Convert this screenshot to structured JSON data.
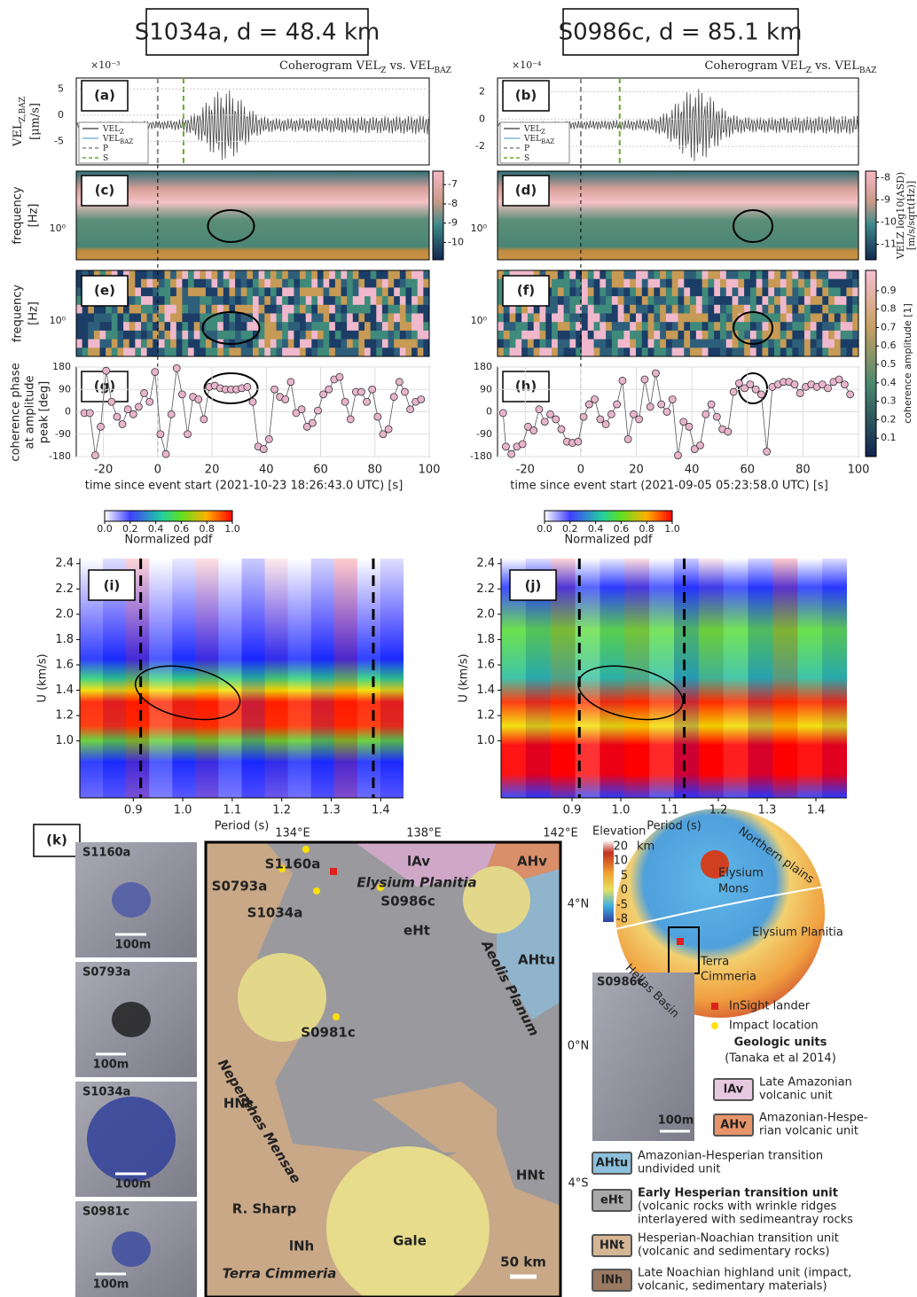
{
  "headers": [
    "S1034a, d = 48.4 km",
    "S0986c, d = 85.1 km"
  ],
  "coherogram_title": [
    {
      "t": "Coherogram VEL"
    },
    {
      "t": "Z",
      "sub": true
    },
    {
      "t": " vs. "
    },
    {
      "t": "VEL"
    },
    {
      "t": "BAZ",
      "sub": true
    }
  ],
  "wave_ylabel": [
    {
      "t": "VEL"
    },
    {
      "t": "Z,BAZ",
      "sub": true
    }
  ],
  "wave_yunit": "[μm/s]",
  "legend": [
    {
      "t": "VEL",
      "sub": "Z",
      "color": "#555555"
    },
    {
      "t": "VEL",
      "sub": "BAZ",
      "color": "#7fb7d6"
    },
    {
      "t": "P",
      "color": "#888888"
    },
    {
      "t": "S",
      "color": "#6aa832"
    }
  ],
  "freq_label": [
    "frequency",
    "[Hz]"
  ],
  "freq_tick": "10⁰",
  "phase_ylabel": [
    "coherence phase",
    "at amplitude",
    "peak [deg]"
  ],
  "phase_yticks": [
    -180,
    -90,
    0,
    90,
    180
  ],
  "phase_ylim": [
    -180,
    180
  ],
  "asd_cbar_label": [
    "VELZ log10(ASD)",
    "[m/s/sqrt(Hz)]"
  ],
  "coh_cbar": {
    "label": "coherence amplitude [1]",
    "ticks": [
      0.1,
      0.2,
      0.3,
      0.4,
      0.5,
      0.6,
      0.7,
      0.8,
      0.9
    ],
    "lim": [
      0,
      1.01
    ]
  },
  "pdf_cbar": {
    "label": "Normalized pdf",
    "ticks": [
      {
        "value": 0,
        "label": "0.0"
      },
      0.2,
      0.4,
      0.6,
      0.8,
      {
        "value": 1,
        "label": "1.0"
      }
    ],
    "lim": [
      0,
      1
    ]
  },
  "disp_xlabel": "Period (s)",
  "disp_ylabel": "U (km/s)",
  "disp_yticks": [
    {
      "value": 1,
      "label": "1.0"
    },
    1.2,
    1.4,
    1.6,
    1.8,
    {
      "value": 2,
      "label": "2.0"
    },
    2.2,
    2.4
  ],
  "disp_ylim": [
    0.55,
    2.44
  ],
  "disp_xticks": [
    0.9,
    {
      "value": 1,
      "label": "1.0"
    },
    1.1,
    1.2,
    1.3,
    1.4
  ],
  "columns": [
    {
      "wave": {
        "label": "(a)",
        "scale": "×10⁻³",
        "yticks": [
          -5,
          0,
          5
        ],
        "ylim": [
          -9.5,
          7.1
        ],
        "P": 0,
        "S": 9.5
      },
      "spec": {
        "label": "(c)",
        "cbar_ticks": [
          -10,
          -9,
          -8,
          -7
        ],
        "cbar_lim": [
          -10.9,
          -6.3
        ]
      },
      "coh": {
        "label": "(e)"
      },
      "phase": {
        "label": "(g)",
        "color": "#e8b4cc",
        "x": [
          -27,
          -25,
          -23,
          -21,
          -19,
          -17,
          -15,
          -13,
          -11,
          -9,
          -7,
          -5,
          -3,
          -1,
          1,
          3,
          5,
          7,
          9,
          11,
          13,
          15,
          17,
          19,
          21,
          23,
          25,
          27,
          29,
          31,
          33,
          35,
          37,
          39,
          41,
          43,
          45,
          47,
          49,
          51,
          53,
          55,
          57,
          59,
          61,
          63,
          65,
          67,
          69,
          71,
          73,
          75,
          77,
          79,
          81,
          83,
          85,
          87,
          89,
          91,
          93,
          95,
          97
        ],
        "values": [
          -5,
          -5,
          -175,
          -60,
          165,
          40,
          -20,
          -50,
          10,
          -10,
          20,
          75,
          40,
          160,
          -90,
          -170,
          -10,
          175,
          70,
          -90,
          60,
          50,
          -30,
          100,
          105,
          95,
          90,
          90,
          90,
          95,
          100,
          40,
          -140,
          -150,
          -110,
          90,
          60,
          50,
          120,
          -5,
          10,
          -60,
          -45,
          5,
          70,
          90,
          130,
          140,
          40,
          -30,
          80,
          80,
          40,
          90,
          -20,
          -90,
          -70,
          60,
          120,
          80,
          10,
          40,
          50
        ]
      },
      "xticks": [
        -20,
        0,
        20,
        40,
        60,
        80,
        100
      ],
      "xlim": [
        -30,
        100
      ],
      "xlabel": "time since event start (2021-10-23 18:26:43.0 UTC)  [s]",
      "disp": {
        "label": "(i)",
        "xlim": [
          0.792,
          1.446
        ],
        "dashes": [
          0.915,
          1.385
        ]
      }
    },
    {
      "wave": {
        "label": "(b)",
        "scale": "×10⁻⁴",
        "yticks": [
          -2,
          0,
          2
        ],
        "ylim": [
          -3.35,
          3
        ],
        "P": 0,
        "S": 14
      },
      "spec": {
        "label": "(d)",
        "cbar_ticks": [
          -11,
          -10,
          -9,
          -8
        ],
        "cbar_lim": [
          -11.7,
          -7.7
        ]
      },
      "coh": {
        "label": "(f)"
      },
      "phase": {
        "label": "(h)",
        "color": "#e8b4cc",
        "x": [
          -28,
          -27,
          -25,
          -23,
          -21,
          -19,
          -17,
          -15,
          -13,
          -11,
          -9,
          -7,
          -5,
          -3,
          -1,
          1,
          3,
          5,
          7,
          9,
          11,
          13,
          15,
          17,
          19,
          21,
          23,
          25,
          27,
          29,
          31,
          33,
          35,
          37,
          39,
          41,
          43,
          45,
          47,
          49,
          51,
          53,
          55,
          57,
          59,
          61,
          63,
          65,
          67,
          69,
          71,
          73,
          75,
          77,
          79,
          81,
          83,
          85,
          87,
          89,
          91,
          93,
          95,
          97
        ],
        "values": [
          -5,
          -140,
          -170,
          -140,
          -130,
          -60,
          -75,
          10,
          -40,
          -10,
          -30,
          -70,
          -120,
          -125,
          -120,
          -20,
          30,
          50,
          -30,
          -50,
          -10,
          30,
          125,
          -110,
          -10,
          -30,
          130,
          20,
          155,
          30,
          0,
          50,
          -175,
          -40,
          -60,
          -150,
          -135,
          -10,
          30,
          -20,
          -70,
          -80,
          80,
          115,
          95,
          110,
          90,
          70,
          -160,
          100,
          110,
          120,
          120,
          110,
          75,
          100,
          110,
          100,
          110,
          95,
          120,
          130,
          110,
          70
        ]
      },
      "xticks": [
        -20,
        0,
        20,
        40,
        60,
        80,
        100
      ],
      "xlim": [
        -30,
        100
      ],
      "xlabel": "time since event start (2021-09-05 05:23:58.0 UTC)  [s]",
      "disp": {
        "label": "(j)",
        "xlim": [
          0.7545,
          1.4636
        ],
        "dashes": [
          0.915,
          1.13
        ]
      }
    }
  ],
  "k_label": "(k)",
  "photos": [
    {
      "name": "S1160a",
      "scale": "100m"
    },
    {
      "name": "S0793a",
      "scale": "100m"
    },
    {
      "name": "S1034a",
      "scale": "100m"
    },
    {
      "name": "S0981c",
      "scale": "100m"
    }
  ],
  "map": {
    "lon_ticks": [
      "134°E",
      "138°E",
      "142°E"
    ],
    "lat_ticks": [
      "4°N",
      "0°N",
      "4°S"
    ],
    "events": [
      "S1160a",
      "S0793a",
      "S1034a",
      "S0986c",
      "S0981c"
    ],
    "units": [
      "eHt",
      "lAv",
      "AHv",
      "AHtu",
      "HNt",
      "HNt",
      "lNh"
    ],
    "places": [
      "Elysium Planitia",
      "Aeolis Planum",
      "Nepenthes Mensae",
      "R. Sharp",
      "Gale",
      "Terra Cimmeria"
    ],
    "scale": "50 km"
  },
  "globe": {
    "elevation": "Elevation",
    "unit": "km",
    "ticks": [
      "20",
      "10",
      "5",
      "0",
      "-5",
      "-8"
    ],
    "labels": [
      "Elysium",
      "Mons",
      "Elysium Planitia",
      "Terra",
      "Cimmeria",
      "Northern plains",
      "Hellas Basin"
    ]
  },
  "legend_k": {
    "photo": "S0986c",
    "photo_scale": "100m",
    "lander": "InSight lander",
    "impact": "Impact location",
    "units_title": "Geologic units",
    "units_ref": "(Tanaka et al 2014)",
    "units": [
      {
        "code": "lAv",
        "desc": [
          "Late Amazonian",
          "volcanic unit"
        ]
      },
      {
        "code": "AHv",
        "desc": [
          "Amazonian-Hespe-",
          "rian volcanic unit"
        ]
      },
      {
        "code": "AHtu",
        "desc": [
          "Amazonian-Hesperian transition",
          "undivided unit"
        ]
      },
      {
        "code": "eHt",
        "desc": [
          "Early Hesperian transition unit",
          "(volcanic rocks with wrinkle ridges",
          "interlayered with sedimeantray rocks"
        ]
      },
      {
        "code": "HNt",
        "desc": [
          "Hesperian-Noachian transition unit",
          "(volcanic and sedimentary rocks)"
        ]
      },
      {
        "code": "lNh",
        "desc": [
          "Late Noachian highland unit (impact,",
          "volcanic, sedimentary materials)"
        ]
      }
    ]
  }
}
